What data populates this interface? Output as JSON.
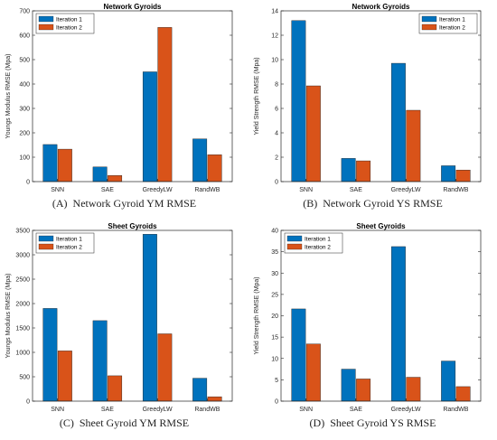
{
  "colors": {
    "iteration_1": "#0072BD",
    "iteration_2": "#D95319"
  },
  "panels": [
    {
      "caption_letter": "(A)",
      "caption_text": "Network Gyroid YM RMSE"
    },
    {
      "caption_letter": "(B)",
      "caption_text": "Network Gyroid YS RMSE"
    },
    {
      "caption_letter": "(C)",
      "caption_text": "Sheet Gyroid YM RMSE"
    },
    {
      "caption_letter": "(D)",
      "caption_text": "Sheet Gyroid YS RMSE"
    }
  ],
  "chart_data": [
    {
      "type": "bar",
      "title": "Network Gyroids",
      "xlabel": "",
      "ylabel": "Youngs Modulus RMSE (Mpa)",
      "categories": [
        "SNN",
        "SAE",
        "GreedyLW",
        "RandWB"
      ],
      "series": [
        {
          "name": "Iteration 1",
          "values": [
            152,
            60,
            450,
            175
          ]
        },
        {
          "name": "Iteration 2",
          "values": [
            133,
            25,
            632,
            110
          ]
        }
      ],
      "ylim": [
        0,
        700
      ],
      "yticks": [
        0,
        100,
        200,
        300,
        400,
        500,
        600,
        700
      ],
      "legend": "top-left"
    },
    {
      "type": "bar",
      "title": "Network Gyroids",
      "xlabel": "",
      "ylabel": "Yield Strength RMSE (Mpa)",
      "categories": [
        "SNN",
        "SAE",
        "GreedyLW",
        "RandWB"
      ],
      "series": [
        {
          "name": "Iteration 1",
          "values": [
            13.2,
            1.9,
            9.7,
            1.3
          ]
        },
        {
          "name": "Iteration 2",
          "values": [
            7.85,
            1.7,
            5.85,
            0.95
          ]
        }
      ],
      "ylim": [
        0,
        14
      ],
      "yticks": [
        0,
        2,
        4,
        6,
        8,
        10,
        12,
        14
      ],
      "legend": "top-right"
    },
    {
      "type": "bar",
      "title": "Sheet Gyroids",
      "xlabel": "",
      "ylabel": "Youngs Modulus RMSE (Mpa)",
      "categories": [
        "SNN",
        "SAE",
        "GreedyLW",
        "RandWB"
      ],
      "series": [
        {
          "name": "Iteration 1",
          "values": [
            1900,
            1650,
            3420,
            470
          ]
        },
        {
          "name": "Iteration 2",
          "values": [
            1030,
            520,
            1380,
            90
          ]
        }
      ],
      "ylim": [
        0,
        3500
      ],
      "yticks": [
        0,
        500,
        1000,
        1500,
        2000,
        2500,
        3000,
        3500
      ],
      "legend": "top-left"
    },
    {
      "type": "bar",
      "title": "Sheet Gyroids",
      "xlabel": "",
      "ylabel": "Yield Strength RMSE (Mpa)",
      "categories": [
        "SNN",
        "SAE",
        "GreedyLW",
        "RandWB"
      ],
      "series": [
        {
          "name": "Iteration 1",
          "values": [
            21.6,
            7.5,
            36.2,
            9.4
          ]
        },
        {
          "name": "Iteration 2",
          "values": [
            13.4,
            5.2,
            5.6,
            3.4
          ]
        }
      ],
      "ylim": [
        0,
        40
      ],
      "yticks": [
        0,
        5,
        10,
        15,
        20,
        25,
        30,
        35,
        40
      ],
      "legend": "top-left"
    }
  ]
}
